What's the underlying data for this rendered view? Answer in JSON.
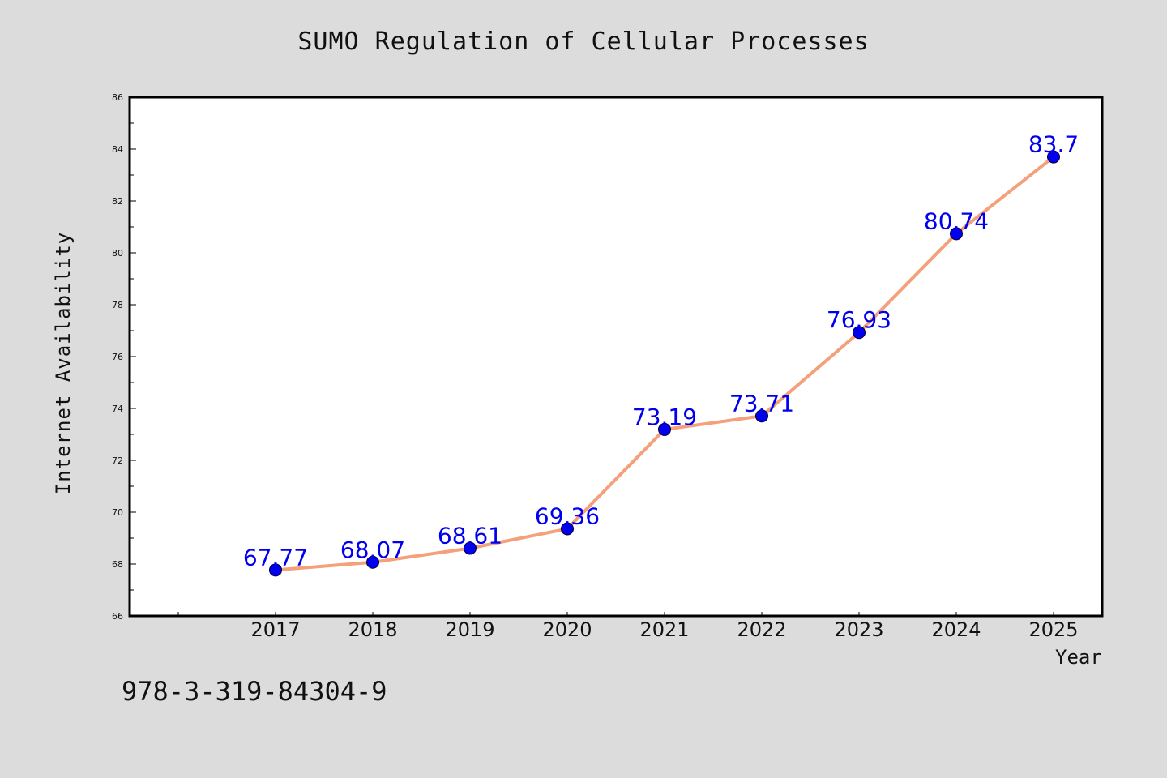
{
  "chart_data": {
    "type": "line",
    "title": "SUMO Regulation of Cellular Processes",
    "xlabel": "Year",
    "ylabel": "Internet Availability",
    "x": [
      "2017",
      "2018",
      "2019",
      "2020",
      "2021",
      "2022",
      "2023",
      "2024",
      "2025"
    ],
    "series": [
      {
        "values": [
          67.77,
          68.07,
          68.61,
          69.36,
          73.19,
          73.71,
          76.93,
          80.74,
          83.7
        ],
        "labels": [
          "67.77",
          "68.07",
          "68.61",
          "69.36",
          "73.19",
          "73.71",
          "76.93",
          "80.74",
          "83.7"
        ],
        "line_color": "#f4a07a",
        "marker_color": "#0000ee",
        "label_color": "#0000ee"
      }
    ],
    "ylim": [
      66,
      86
    ],
    "yticks": [
      66,
      68,
      70,
      72,
      74,
      76,
      78,
      80,
      82,
      84,
      86
    ],
    "grid": false,
    "legend": "none"
  },
  "footnote": "978-3-319-84304-9",
  "colors": {
    "background": "#dcdcdc",
    "plot_background": "#ffffff",
    "frame": "#000000"
  }
}
